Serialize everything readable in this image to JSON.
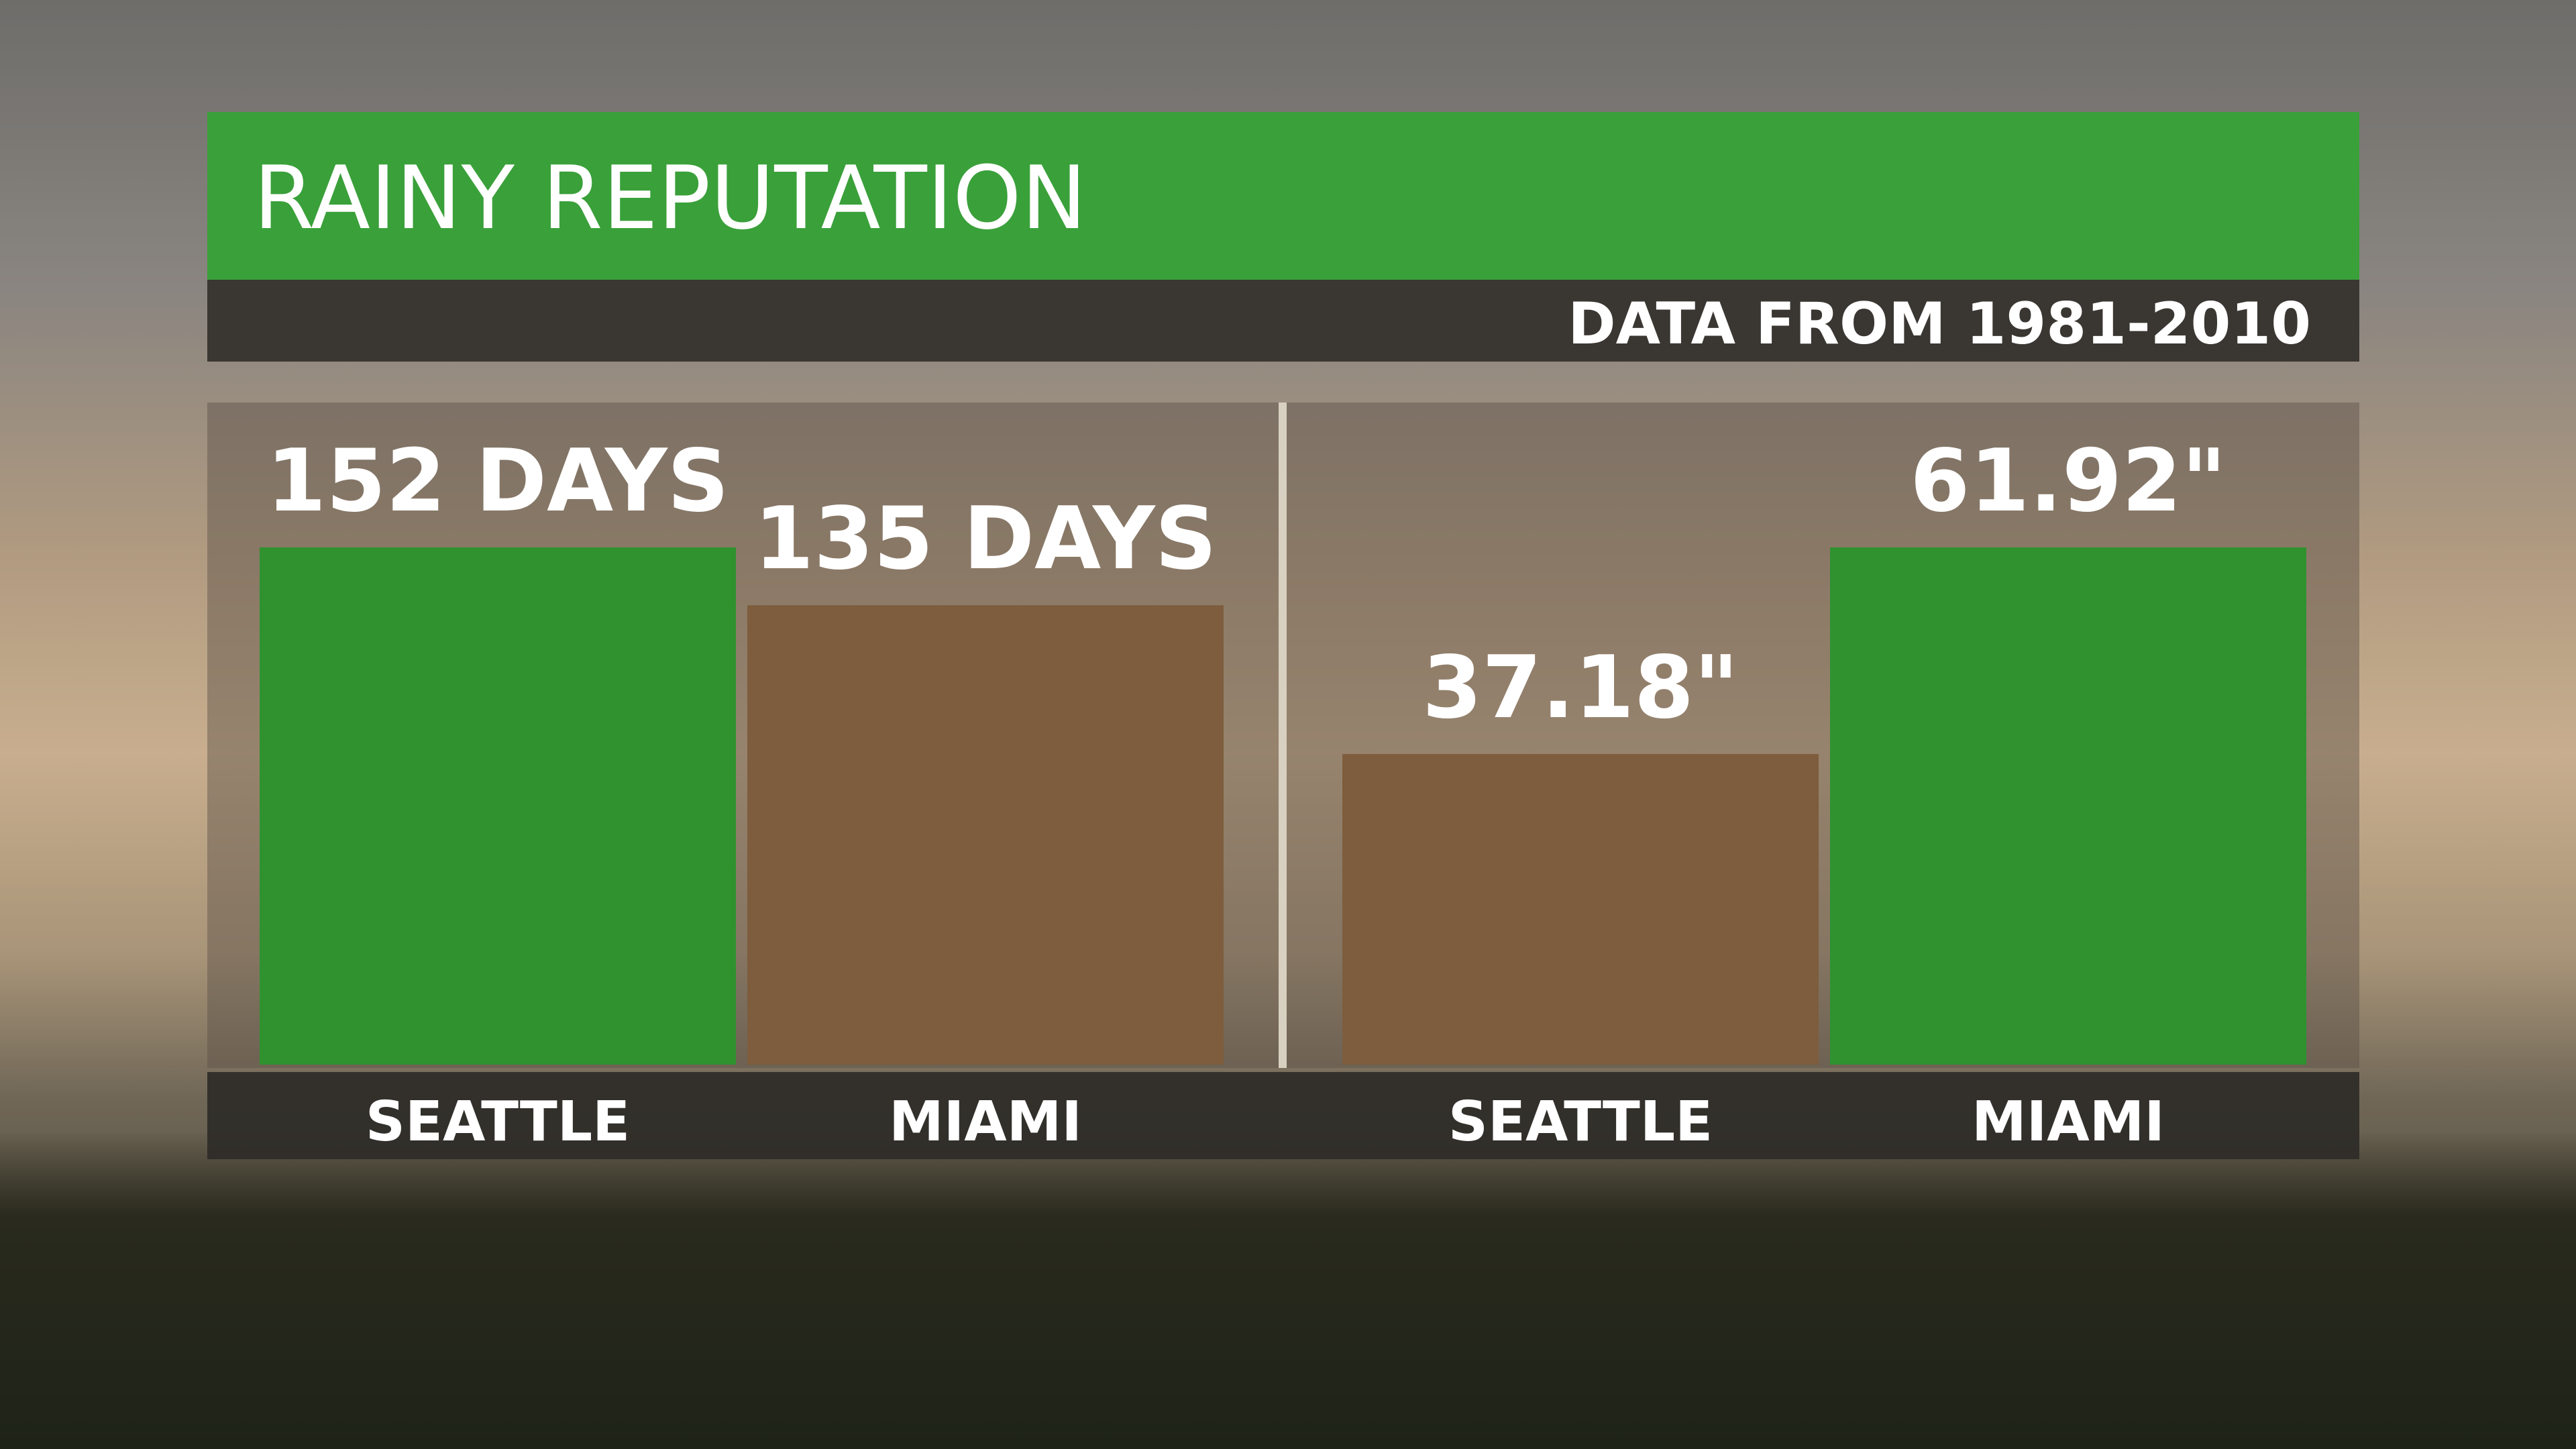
{
  "header": {
    "title": "RAINY REPUTATION",
    "subtitle": "DATA FROM 1981-2010"
  },
  "chart_data": [
    {
      "type": "bar",
      "categories": [
        "SEATTLE",
        "MIAMI"
      ],
      "values": [
        152,
        135
      ],
      "value_labels": [
        "152 DAYS",
        "135 DAYS"
      ],
      "colors": [
        "#2f922f",
        "#7d5d3d"
      ]
    },
    {
      "type": "bar",
      "categories": [
        "SEATTLE",
        "MIAMI"
      ],
      "values": [
        37.18,
        61.92
      ],
      "value_labels": [
        "37.18\"",
        "61.92\""
      ],
      "colors": [
        "#7d5d3d",
        "#2f922f"
      ]
    }
  ]
}
